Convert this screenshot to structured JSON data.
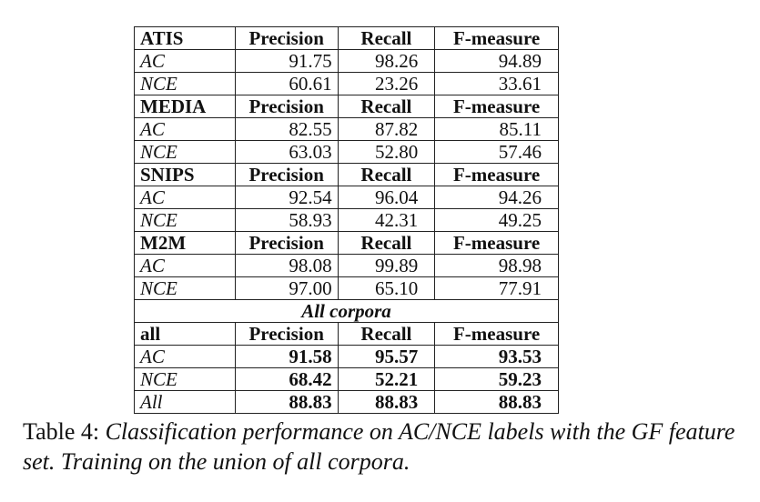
{
  "table": {
    "blocks": [
      {
        "header": [
          "ATIS",
          "Precision",
          "Recall",
          "F-measure"
        ],
        "rows": [
          [
            "AC",
            "91.75",
            "98.26",
            "94.89"
          ],
          [
            "NCE",
            "60.61",
            "23.26",
            "33.61"
          ]
        ]
      },
      {
        "header": [
          "MEDIA",
          "Precision",
          "Recall",
          "F-measure"
        ],
        "rows": [
          [
            "AC",
            "82.55",
            "87.82",
            "85.11"
          ],
          [
            "NCE",
            "63.03",
            "52.80",
            "57.46"
          ]
        ]
      },
      {
        "header": [
          "SNIPS",
          "Precision",
          "Recall",
          "F-measure"
        ],
        "rows": [
          [
            "AC",
            "92.54",
            "96.04",
            "94.26"
          ],
          [
            "NCE",
            "58.93",
            "42.31",
            "49.25"
          ]
        ]
      },
      {
        "header": [
          "M2M",
          "Precision",
          "Recall",
          "F-measure"
        ],
        "rows": [
          [
            "AC",
            "98.08",
            "99.89",
            "98.98"
          ],
          [
            "NCE",
            "97.00",
            "65.10",
            "77.91"
          ]
        ]
      }
    ],
    "all_corpora_title": "All corpora",
    "all_block": {
      "header": [
        "all",
        "Precision",
        "Recall",
        "F-measure"
      ],
      "rows": [
        [
          "AC",
          "91.58",
          "95.57",
          "93.53"
        ],
        [
          "NCE",
          "68.42",
          "52.21",
          "59.23"
        ],
        [
          "All",
          "88.83",
          "88.83",
          "88.83"
        ]
      ]
    }
  },
  "caption": {
    "label": "Table 4:",
    "text": "Classification performance on AC/NCE labels with the GF feature set. Training on the union of all corpora."
  }
}
